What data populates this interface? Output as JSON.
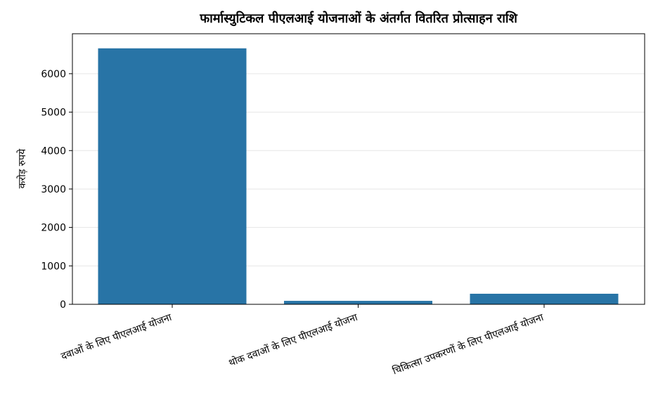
{
  "chart_data": {
    "type": "bar",
    "title": "फार्मास्युटिकल पीएलआई योजनाओं के अंतर्गत वितरित प्रोत्साहन राशि",
    "ylabel": "करोड़ रुपये",
    "categories": [
      "दवाओं के लिए पीएलआई योजना",
      "थोक दवाओं के लिए पीएलआई योजना",
      "चिकित्सा उपकरणों के लिए पीएलआई योजना"
    ],
    "values": [
      6660,
      90,
      275
    ],
    "color": "#2874a6",
    "ylim": [
      0,
      7040
    ],
    "yticks": [
      0,
      1000,
      2000,
      3000,
      4000,
      5000,
      6000
    ],
    "grid": true
  }
}
